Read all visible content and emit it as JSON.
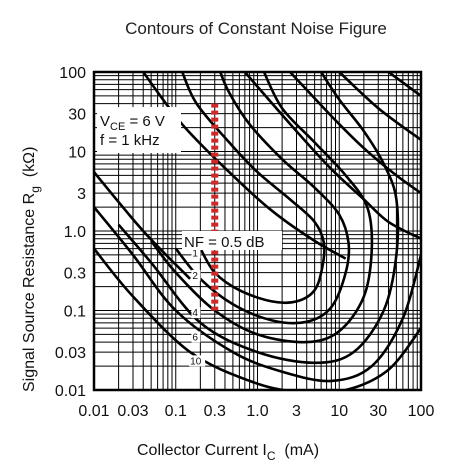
{
  "chart_data": {
    "type": "line",
    "title": "Contours of Constant Noise Figure",
    "xlabel": "Collector Current  I",
    "xlabel_sub": "C",
    "xlabel_unit": "(mA)",
    "ylabel": "Signal Source Resistance  R",
    "ylabel_sub": "g",
    "ylabel_unit": "(kΩ)",
    "x_scale": "log",
    "y_scale": "log",
    "xlim": [
      0.01,
      100
    ],
    "ylim": [
      0.01,
      100
    ],
    "grid": true,
    "x_ticks": [
      "0.01",
      "0.03",
      "0.1",
      "0.3",
      "1.0",
      "3",
      "10",
      "30",
      "100"
    ],
    "y_ticks": [
      "100",
      "30",
      "10",
      "3",
      "1.0",
      "0.3",
      "0.1",
      "0.03",
      "0.01"
    ],
    "conditions": {
      "vce_label": "V",
      "vce_sub": "CE",
      "vce_value": " = 6 V",
      "freq": "f = 1 kHz"
    },
    "nf_label": "NF = 0.5 dB",
    "marker_x": 0.3,
    "marker_ylim": [
      0.1,
      40
    ],
    "marker_color": "#cc2b2b",
    "series": [
      {
        "name": "0.5",
        "points": [
          [
            0.2,
            0.6
          ],
          [
            0.3,
            0.3
          ],
          [
            0.6,
            0.18
          ],
          [
            1.5,
            0.13
          ],
          [
            3,
            0.13
          ],
          [
            5,
            0.18
          ],
          [
            6.2,
            0.35
          ],
          [
            6.5,
            0.7
          ],
          [
            5,
            1.3
          ],
          [
            2.5,
            2.5
          ],
          [
            1,
            5.5
          ],
          [
            0.45,
            13
          ],
          [
            0.18,
            40
          ],
          [
            0.12,
            100
          ]
        ]
      },
      {
        "name": "1",
        "points": [
          [
            0.1,
            0.6
          ],
          [
            0.2,
            0.25
          ],
          [
            0.5,
            0.12
          ],
          [
            1.5,
            0.075
          ],
          [
            4,
            0.072
          ],
          [
            8,
            0.11
          ],
          [
            12,
            0.3
          ],
          [
            13,
            0.7
          ],
          [
            10,
            1.6
          ],
          [
            5,
            3.5
          ],
          [
            2,
            8
          ],
          [
            0.8,
            22
          ],
          [
            0.45,
            55
          ],
          [
            0.35,
            100
          ]
        ]
      },
      {
        "name": "2",
        "points": [
          [
            0.05,
            0.75
          ],
          [
            0.1,
            0.3
          ],
          [
            0.3,
            0.1
          ],
          [
            1,
            0.05
          ],
          [
            4,
            0.04
          ],
          [
            10,
            0.055
          ],
          [
            20,
            0.15
          ],
          [
            25,
            0.6
          ],
          [
            22,
            2
          ],
          [
            12,
            5
          ],
          [
            5,
            13
          ],
          [
            2,
            35
          ],
          [
            1.2,
            100
          ]
        ]
      },
      {
        "name": "4",
        "points": [
          [
            0.02,
            1.2
          ],
          [
            0.05,
            0.4
          ],
          [
            0.2,
            0.07
          ],
          [
            1,
            0.03
          ],
          [
            5,
            0.022
          ],
          [
            15,
            0.03
          ],
          [
            35,
            0.1
          ],
          [
            50,
            0.5
          ],
          [
            50,
            2.5
          ],
          [
            35,
            7
          ],
          [
            20,
            18
          ],
          [
            10,
            45
          ],
          [
            6,
            100
          ]
        ]
      },
      {
        "name": "6",
        "points": [
          [
            0.01,
            2
          ],
          [
            0.03,
            0.5
          ],
          [
            0.1,
            0.1
          ],
          [
            0.5,
            0.03
          ],
          [
            2,
            0.017
          ],
          [
            8,
            0.013
          ],
          [
            25,
            0.02
          ],
          [
            60,
            0.08
          ],
          [
            100,
            0.5
          ]
        ]
      },
      {
        "name": "10",
        "points": [
          [
            0.01,
            0.6
          ],
          [
            0.03,
            0.15
          ],
          [
            0.15,
            0.03
          ],
          [
            0.8,
            0.013
          ],
          [
            3,
            0.0095
          ],
          [
            12,
            0.01
          ],
          [
            40,
            0.018
          ],
          [
            100,
            0.06
          ]
        ]
      },
      {
        "points": [
          [
            0.01,
            5.5
          ],
          [
            0.04,
            1
          ],
          [
            0.15,
            0.25
          ]
        ]
      },
      {
        "points": [
          [
            0.04,
            100
          ],
          [
            0.12,
            22
          ],
          [
            0.45,
            5.5
          ],
          [
            1.5,
            1.8
          ],
          [
            5,
            0.75
          ],
          [
            12,
            0.45
          ]
        ]
      },
      {
        "points": [
          [
            0.7,
            100
          ],
          [
            3,
            18
          ],
          [
            8,
            6
          ],
          [
            20,
            2.5
          ],
          [
            40,
            1.3
          ],
          [
            100,
            0.8
          ]
        ]
      },
      {
        "points": [
          [
            2.5,
            100
          ],
          [
            8,
            28
          ],
          [
            20,
            11
          ],
          [
            50,
            5
          ],
          [
            100,
            3
          ]
        ]
      },
      {
        "points": [
          [
            10,
            100
          ],
          [
            30,
            35
          ],
          [
            100,
            14
          ]
        ]
      },
      {
        "points": [
          [
            40,
            100
          ],
          [
            100,
            50
          ]
        ]
      }
    ],
    "contour_labels": [
      {
        "text": "1",
        "x": 0.16,
        "y": 0.48
      },
      {
        "text": "2",
        "x": 0.16,
        "y": 0.25
      },
      {
        "text": "4",
        "x": 0.16,
        "y": 0.085
      },
      {
        "text": "6",
        "x": 0.16,
        "y": 0.042
      },
      {
        "text": "10",
        "x": 0.15,
        "y": 0.021
      }
    ]
  }
}
